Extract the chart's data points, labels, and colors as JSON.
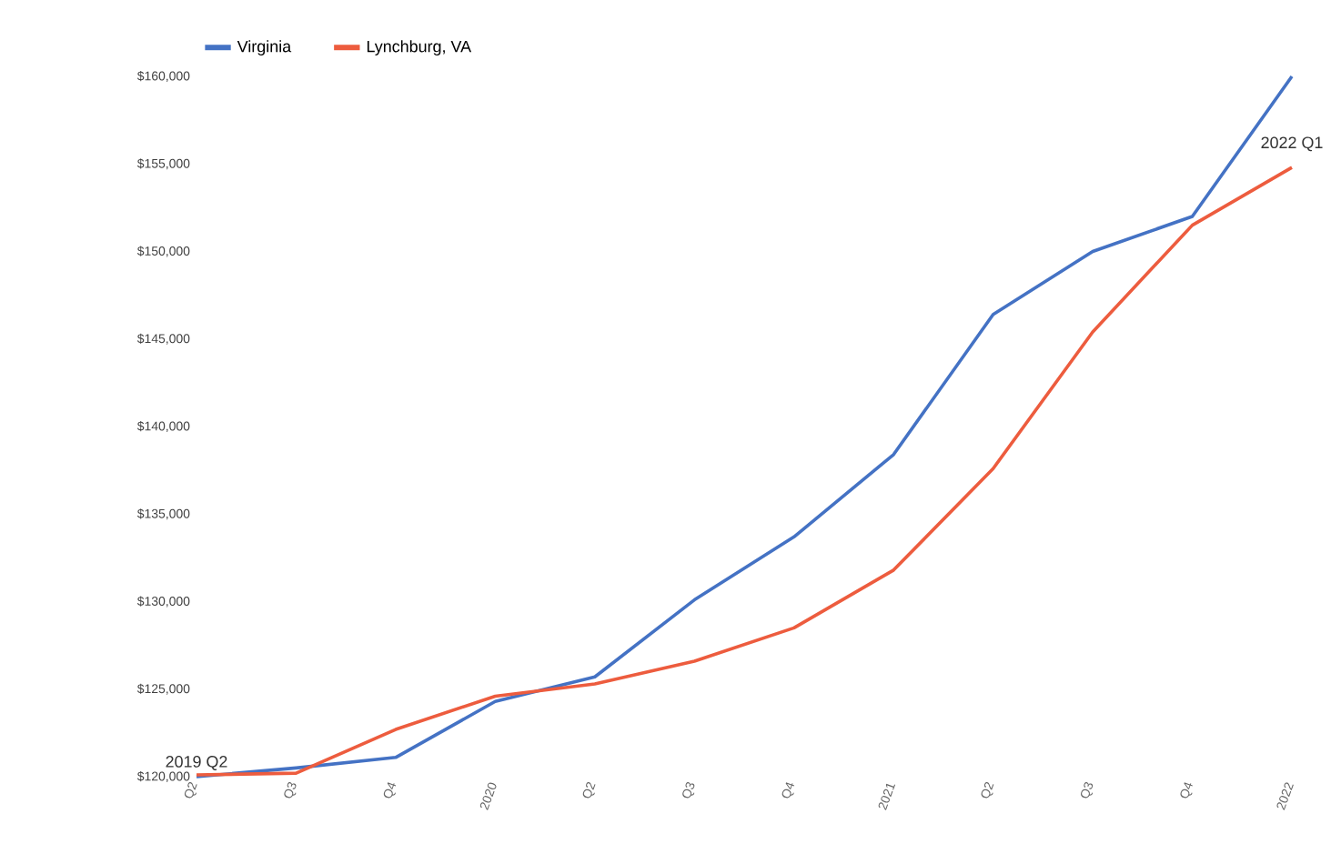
{
  "chart_data": {
    "type": "line",
    "categories": [
      "Q2",
      "Q3",
      "Q4",
      "2020",
      "Q2",
      "Q3",
      "Q4",
      "2021",
      "Q2",
      "Q3",
      "Q4",
      "2022"
    ],
    "series": [
      {
        "name": "Virginia",
        "color": "#4472c4",
        "values": [
          120000,
          120500,
          121100,
          124300,
          125700,
          130100,
          133700,
          138400,
          146400,
          150000,
          152000,
          160000
        ]
      },
      {
        "name": "Lynchburg, VA",
        "color": "#ed5c3e",
        "values": [
          120100,
          120200,
          122700,
          124600,
          125300,
          126600,
          128500,
          131800,
          137600,
          145400,
          151500,
          154800
        ]
      }
    ],
    "ylim": [
      120000,
      160000
    ],
    "yticks": [
      {
        "value": 120000,
        "label": "$120,000"
      },
      {
        "value": 125000,
        "label": "$125,000"
      },
      {
        "value": 130000,
        "label": "$130,000"
      },
      {
        "value": 135000,
        "label": "$135,000"
      },
      {
        "value": 140000,
        "label": "$140,000"
      },
      {
        "value": 145000,
        "label": "$145,000"
      },
      {
        "value": 150000,
        "label": "$150,000"
      },
      {
        "value": 155000,
        "label": "$155,000"
      },
      {
        "value": 160000,
        "label": "$160,000"
      }
    ],
    "annotations": [
      "2019 Q2",
      "2022 Q1"
    ],
    "grid": false,
    "legend": "top left",
    "marker": "none",
    "line_style": "solid"
  }
}
